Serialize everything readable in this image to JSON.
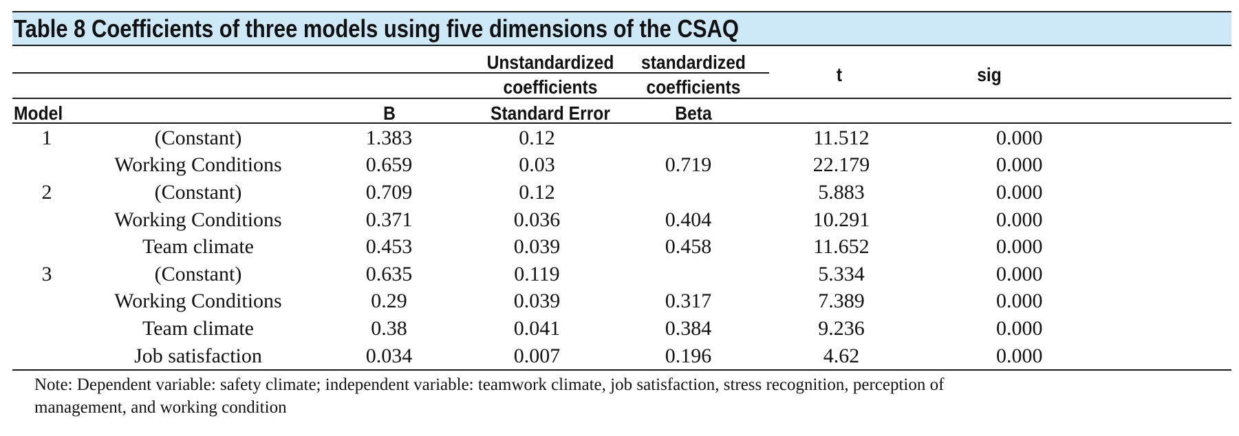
{
  "title": "Table 8 Coefficients of three models using five dimensions of the CSAQ",
  "header": {
    "unstd_line1": "Unstandardized",
    "unstd_line2": "coefficients",
    "std_line1": "standardized",
    "std_line2": "coefficients",
    "t": "t",
    "sig": "sig",
    "model": "Model",
    "b": "B",
    "se": "Standard Error",
    "beta": "Beta"
  },
  "rows": [
    {
      "model": "1",
      "variable": "(Constant)",
      "b": "1.383",
      "se": "0.12",
      "beta": "",
      "t": "11.512",
      "sig": "0.000"
    },
    {
      "model": "",
      "variable": "Working Conditions",
      "b": "0.659",
      "se": "0.03",
      "beta": "0.719",
      "t": "22.179",
      "sig": "0.000"
    },
    {
      "model": "2",
      "variable": "(Constant)",
      "b": "0.709",
      "se": "0.12",
      "beta": "",
      "t": "5.883",
      "sig": "0.000"
    },
    {
      "model": "",
      "variable": "Working Conditions",
      "b": "0.371",
      "se": "0.036",
      "beta": "0.404",
      "t": "10.291",
      "sig": "0.000"
    },
    {
      "model": "",
      "variable": "Team climate",
      "b": "0.453",
      "se": "0.039",
      "beta": "0.458",
      "t": "11.652",
      "sig": "0.000"
    },
    {
      "model": "3",
      "variable": "(Constant)",
      "b": "0.635",
      "se": "0.119",
      "beta": "",
      "t": "5.334",
      "sig": "0.000"
    },
    {
      "model": "",
      "variable": "Working Conditions",
      "b": "0.29",
      "se": "0.039",
      "beta": "0.317",
      "t": "7.389",
      "sig": "0.000"
    },
    {
      "model": "",
      "variable": "Team climate",
      "b": "0.38",
      "se": "0.041",
      "beta": "0.384",
      "t": "9.236",
      "sig": "0.000"
    },
    {
      "model": "",
      "variable": "Job satisfaction",
      "b": "0.034",
      "se": "0.007",
      "beta": "0.196",
      "t": "4.62",
      "sig": "0.000"
    }
  ],
  "note_line1": "Note: Dependent variable: safety climate; independent variable: teamwork climate, job satisfaction, stress recognition, perception of",
  "note_line2": "management, and working condition"
}
